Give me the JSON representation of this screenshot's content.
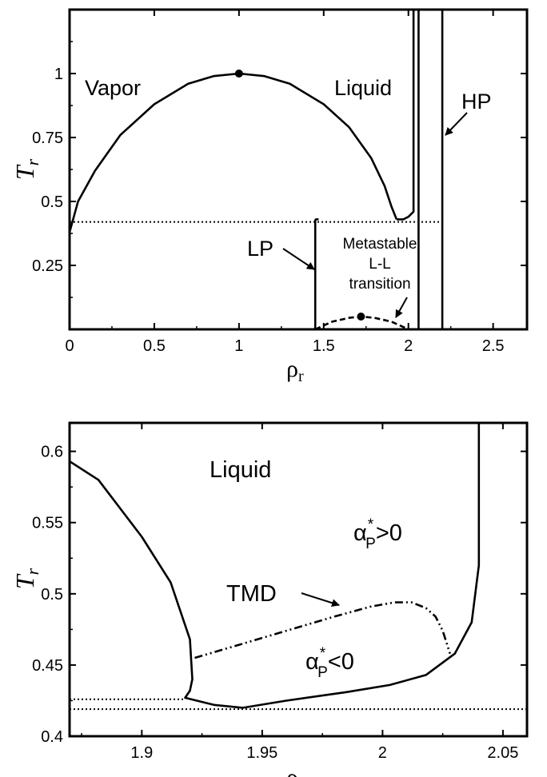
{
  "chart_data": [
    {
      "type": "line",
      "title": "",
      "xlabel": "ρ",
      "xlabel_sub": "r",
      "ylabel": "T",
      "ylabel_sub": "r",
      "xlim": [
        0,
        2.7
      ],
      "ylim": [
        0,
        1.25
      ],
      "xticks": [
        0,
        0.5,
        1,
        1.5,
        2,
        2.5
      ],
      "xtick_labels": [
        "0",
        "0.5",
        "1",
        "1.5",
        "2",
        "2.5"
      ],
      "yticks": [
        0.25,
        0.5,
        0.75,
        1
      ],
      "ytick_labels": [
        "0.25",
        "0.5",
        "0.75",
        "1"
      ],
      "grid": false,
      "series": [
        {
          "style": "solid",
          "x": [
            0,
            0.05,
            0.15,
            0.3,
            0.5,
            0.7,
            0.85,
            1.0,
            1.15,
            1.3,
            1.5,
            1.65,
            1.78,
            1.86,
            1.9,
            1.93
          ],
          "y": [
            0.38,
            0.5,
            0.62,
            0.76,
            0.88,
            0.96,
            0.99,
            1.0,
            0.99,
            0.96,
            0.88,
            0.79,
            0.67,
            0.56,
            0.48,
            0.43
          ]
        },
        {
          "style": "solid",
          "x": [
            1.93,
            1.97,
            2.0,
            2.03,
            2.03,
            2.03
          ],
          "y": [
            0.43,
            0.43,
            0.44,
            0.46,
            0.8,
            1.25
          ]
        },
        {
          "style": "solid",
          "x": [
            2.06,
            2.06
          ],
          "y": [
            0,
            1.25
          ]
        },
        {
          "style": "solid",
          "x": [
            2.2,
            2.2
          ],
          "y": [
            0,
            1.25
          ]
        },
        {
          "style": "solid",
          "x": [
            1.45,
            1.45
          ],
          "y": [
            0,
            0.43
          ]
        },
        {
          "style": "solid",
          "x": [
            1.45,
            1.47
          ],
          "y": [
            0.43,
            0.43
          ]
        },
        {
          "style": "dotted",
          "x": [
            0,
            2.2
          ],
          "y": [
            0.42,
            0.42
          ]
        },
        {
          "style": "dashed",
          "x": [
            1.45,
            1.55,
            1.65,
            1.72,
            1.8,
            1.9,
            2.0
          ],
          "y": [
            0.0,
            0.03,
            0.045,
            0.05,
            0.045,
            0.03,
            0.0
          ]
        }
      ],
      "points": [
        {
          "x": 1.0,
          "y": 1.0
        },
        {
          "x": 1.72,
          "y": 0.05
        }
      ],
      "annotations": [
        {
          "text": "Vapor",
          "x": 0.3,
          "y": 0.97
        },
        {
          "text": "Liquid",
          "x": 1.55,
          "y": 0.97
        },
        {
          "text": "HP",
          "x": 2.45,
          "y": 0.87
        },
        {
          "text": "LP",
          "x": 1.23,
          "y": 0.32
        },
        {
          "text": "Metastable",
          "x": 1.82,
          "y": 0.36
        },
        {
          "text": "L-L",
          "x": 1.82,
          "y": 0.27
        },
        {
          "text": "transition",
          "x": 1.82,
          "y": 0.18
        }
      ]
    },
    {
      "type": "line",
      "title": "",
      "xlabel": "ρ",
      "xlabel_sub": "r",
      "ylabel": "T",
      "ylabel_sub": "r",
      "xlim": [
        1.87,
        2.06
      ],
      "ylim": [
        0.4,
        0.62
      ],
      "xticks": [
        1.9,
        1.95,
        2,
        2.05
      ],
      "xtick_labels": [
        "1.9",
        "1.95",
        "2",
        "2.05"
      ],
      "yticks": [
        0.4,
        0.45,
        0.5,
        0.55,
        0.6
      ],
      "ytick_labels": [
        "0.4",
        "0.45",
        "0.5",
        "0.55",
        "0.6"
      ],
      "grid": false,
      "series": [
        {
          "style": "solid",
          "x": [
            1.87,
            1.882,
            1.9,
            1.912,
            1.92,
            1.921,
            1.92,
            1.918,
            1.93,
            1.942,
            1.96,
            1.985,
            2.003,
            2.018,
            2.03,
            2.037,
            2.04,
            2.04
          ],
          "y": [
            0.593,
            0.58,
            0.54,
            0.508,
            0.468,
            0.44,
            0.432,
            0.427,
            0.422,
            0.42,
            0.425,
            0.431,
            0.436,
            0.443,
            0.458,
            0.48,
            0.52,
            0.62
          ]
        },
        {
          "style": "dashdotdot",
          "x": [
            1.922,
            1.94,
            1.96,
            1.98,
            1.995,
            2.005,
            2.012,
            2.018,
            2.022,
            2.025,
            2.028
          ],
          "y": [
            0.455,
            0.464,
            0.474,
            0.484,
            0.491,
            0.494,
            0.494,
            0.49,
            0.484,
            0.474,
            0.458
          ]
        },
        {
          "style": "dotted",
          "x": [
            1.87,
            1.918
          ],
          "y": [
            0.426,
            0.426
          ]
        },
        {
          "style": "dotted",
          "x": [
            1.87,
            2.06
          ],
          "y": [
            0.419,
            0.419
          ]
        }
      ],
      "annotations": [
        {
          "text": "Liquid",
          "x": 1.93,
          "y": 0.588
        },
        {
          "text": "α",
          "x": 2.006,
          "y": 0.549,
          "sub": "P",
          "sup": "*",
          "suffix": ">0"
        },
        {
          "text": "TMD",
          "x": 1.937,
          "y": 0.497
        },
        {
          "text": "α",
          "x": 1.98,
          "y": 0.448,
          "sub": "P",
          "sup": "*",
          "suffix": "<0"
        }
      ]
    }
  ]
}
